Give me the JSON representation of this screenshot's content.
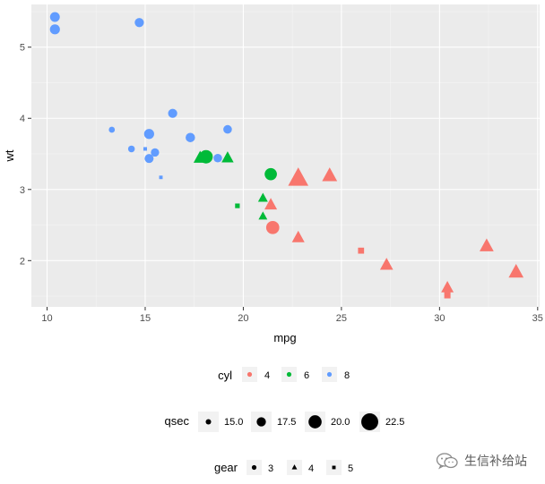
{
  "chart_data": {
    "type": "scatter",
    "title": "",
    "xlabel": "mpg",
    "ylabel": "wt",
    "xlim": [
      9.2,
      35.1
    ],
    "ylim": [
      1.35,
      5.6
    ],
    "xticks": [
      10,
      15,
      20,
      25,
      30,
      35
    ],
    "yticks": [
      2,
      3,
      4,
      5
    ],
    "grid": true,
    "legend_position": "bottom",
    "colors": {
      "4": "#F8766D",
      "6": "#00BA38",
      "8": "#619CFF"
    },
    "legends": {
      "cyl": {
        "title": "cyl",
        "entries": [
          "4",
          "6",
          "8"
        ]
      },
      "qsec": {
        "title": "qsec",
        "entries": [
          "15.0",
          "17.5",
          "20.0",
          "22.5"
        ],
        "values": [
          15.0,
          17.5,
          20.0,
          22.5
        ]
      },
      "gear": {
        "title": "gear",
        "entries": [
          "3",
          "4",
          "5"
        ]
      }
    },
    "points": [
      {
        "mpg": 21.0,
        "wt": 2.62,
        "cyl": "6",
        "qsec": 16.46,
        "gear": "4"
      },
      {
        "mpg": 21.0,
        "wt": 2.875,
        "cyl": "6",
        "qsec": 17.02,
        "gear": "4"
      },
      {
        "mpg": 22.8,
        "wt": 2.32,
        "cyl": "4",
        "qsec": 18.61,
        "gear": "4"
      },
      {
        "mpg": 21.4,
        "wt": 3.215,
        "cyl": "6",
        "qsec": 19.44,
        "gear": "3"
      },
      {
        "mpg": 18.7,
        "wt": 3.44,
        "cyl": "8",
        "qsec": 17.02,
        "gear": "3"
      },
      {
        "mpg": 18.1,
        "wt": 3.46,
        "cyl": "6",
        "qsec": 20.22,
        "gear": "3"
      },
      {
        "mpg": 14.3,
        "wt": 3.57,
        "cyl": "8",
        "qsec": 15.84,
        "gear": "3"
      },
      {
        "mpg": 24.4,
        "wt": 3.19,
        "cyl": "4",
        "qsec": 20.0,
        "gear": "4"
      },
      {
        "mpg": 22.8,
        "wt": 3.15,
        "cyl": "4",
        "qsec": 22.9,
        "gear": "4"
      },
      {
        "mpg": 19.2,
        "wt": 3.44,
        "cyl": "6",
        "qsec": 18.3,
        "gear": "4"
      },
      {
        "mpg": 17.8,
        "wt": 3.44,
        "cyl": "6",
        "qsec": 18.9,
        "gear": "4"
      },
      {
        "mpg": 16.4,
        "wt": 4.07,
        "cyl": "8",
        "qsec": 17.4,
        "gear": "3"
      },
      {
        "mpg": 17.3,
        "wt": 3.73,
        "cyl": "8",
        "qsec": 17.6,
        "gear": "3"
      },
      {
        "mpg": 15.2,
        "wt": 3.78,
        "cyl": "8",
        "qsec": 18.0,
        "gear": "3"
      },
      {
        "mpg": 10.4,
        "wt": 5.25,
        "cyl": "8",
        "qsec": 17.98,
        "gear": "3"
      },
      {
        "mpg": 10.4,
        "wt": 5.424,
        "cyl": "8",
        "qsec": 17.82,
        "gear": "3"
      },
      {
        "mpg": 14.7,
        "wt": 5.345,
        "cyl": "8",
        "qsec": 17.42,
        "gear": "3"
      },
      {
        "mpg": 32.4,
        "wt": 2.2,
        "cyl": "4",
        "qsec": 19.47,
        "gear": "4"
      },
      {
        "mpg": 30.4,
        "wt": 1.615,
        "cyl": "4",
        "qsec": 18.52,
        "gear": "4"
      },
      {
        "mpg": 33.9,
        "wt": 1.835,
        "cyl": "4",
        "qsec": 19.9,
        "gear": "4"
      },
      {
        "mpg": 21.5,
        "wt": 2.465,
        "cyl": "4",
        "qsec": 20.01,
        "gear": "3"
      },
      {
        "mpg": 15.5,
        "wt": 3.52,
        "cyl": "8",
        "qsec": 16.87,
        "gear": "3"
      },
      {
        "mpg": 15.2,
        "wt": 3.435,
        "cyl": "8",
        "qsec": 17.3,
        "gear": "3"
      },
      {
        "mpg": 13.3,
        "wt": 3.84,
        "cyl": "8",
        "qsec": 15.41,
        "gear": "3"
      },
      {
        "mpg": 19.2,
        "wt": 3.845,
        "cyl": "8",
        "qsec": 17.05,
        "gear": "3"
      },
      {
        "mpg": 27.3,
        "wt": 1.935,
        "cyl": "4",
        "qsec": 18.9,
        "gear": "4"
      },
      {
        "mpg": 26.0,
        "wt": 2.14,
        "cyl": "4",
        "qsec": 16.7,
        "gear": "5"
      },
      {
        "mpg": 30.4,
        "wt": 1.513,
        "cyl": "4",
        "qsec": 16.9,
        "gear": "5"
      },
      {
        "mpg": 15.8,
        "wt": 3.17,
        "cyl": "8",
        "qsec": 14.5,
        "gear": "5"
      },
      {
        "mpg": 19.7,
        "wt": 2.77,
        "cyl": "6",
        "qsec": 15.5,
        "gear": "5"
      },
      {
        "mpg": 15.0,
        "wt": 3.57,
        "cyl": "8",
        "qsec": 14.6,
        "gear": "5"
      },
      {
        "mpg": 21.4,
        "wt": 2.78,
        "cyl": "4",
        "qsec": 18.6,
        "gear": "4"
      }
    ]
  },
  "watermark": {
    "text": "生信补给站",
    "icon": "wechat-icon"
  }
}
